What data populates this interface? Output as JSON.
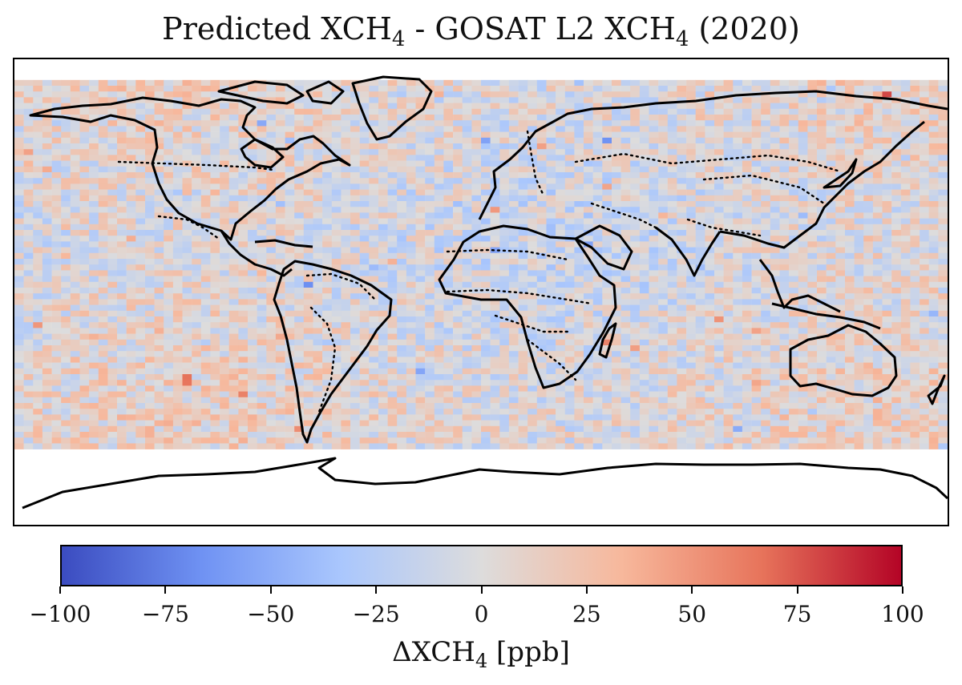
{
  "title": {
    "text_before": "Predicted XCH",
    "sub1": "4",
    "text_mid": " - GOSAT L2 XCH",
    "sub2": "4",
    "text_after": " (2020)"
  },
  "map": {
    "projection": "PlateCarree",
    "background": "#ffffff",
    "coastline_color": "#000000",
    "border_style": "dotted",
    "data_extent_lat": [
      -60,
      82
    ]
  },
  "colorbar": {
    "colormap": "coolwarm",
    "stops": [
      "#3b4cc0",
      "#6f92f3",
      "#aac7fd",
      "#dddcdc",
      "#f7b89c",
      "#e7745b",
      "#b40426"
    ],
    "range": [
      -100,
      100
    ],
    "ticks": [
      {
        "value": -100,
        "label": "−100"
      },
      {
        "value": -75,
        "label": "−75"
      },
      {
        "value": -50,
        "label": "−50"
      },
      {
        "value": -25,
        "label": "−25"
      },
      {
        "value": 0,
        "label": "0"
      },
      {
        "value": 25,
        "label": "25"
      },
      {
        "value": 50,
        "label": "50"
      },
      {
        "value": 75,
        "label": "75"
      },
      {
        "value": 100,
        "label": "100"
      }
    ],
    "label_before": "ΔXCH",
    "label_sub": "4",
    "label_after": " [ppb]"
  }
}
